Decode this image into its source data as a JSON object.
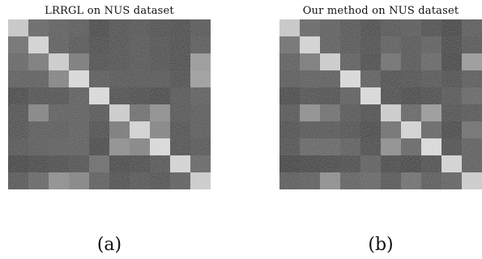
{
  "chart_data": [
    {
      "type": "heatmap",
      "title": "LRRGL on NUS dataset",
      "label": "(a)",
      "rows": 10,
      "cols": 10,
      "values": [
        [
          0.8,
          0.35,
          0.3,
          0.28,
          0.15,
          0.22,
          0.24,
          0.2,
          0.18,
          0.25
        ],
        [
          0.4,
          0.85,
          0.3,
          0.25,
          0.18,
          0.22,
          0.25,
          0.22,
          0.18,
          0.28
        ],
        [
          0.35,
          0.45,
          0.82,
          0.45,
          0.2,
          0.22,
          0.25,
          0.22,
          0.18,
          0.6
        ],
        [
          0.3,
          0.3,
          0.5,
          0.88,
          0.28,
          0.25,
          0.25,
          0.25,
          0.2,
          0.62
        ],
        [
          0.15,
          0.22,
          0.22,
          0.3,
          0.88,
          0.2,
          0.18,
          0.15,
          0.25,
          0.3
        ],
        [
          0.22,
          0.5,
          0.3,
          0.3,
          0.25,
          0.82,
          0.4,
          0.55,
          0.25,
          0.28
        ],
        [
          0.22,
          0.28,
          0.28,
          0.3,
          0.2,
          0.45,
          0.85,
          0.5,
          0.22,
          0.28
        ],
        [
          0.25,
          0.28,
          0.3,
          0.3,
          0.15,
          0.55,
          0.5,
          0.88,
          0.22,
          0.25
        ],
        [
          0.1,
          0.15,
          0.18,
          0.22,
          0.38,
          0.15,
          0.18,
          0.25,
          0.85,
          0.35
        ],
        [
          0.25,
          0.35,
          0.55,
          0.5,
          0.3,
          0.2,
          0.25,
          0.22,
          0.3,
          0.82
        ]
      ]
    },
    {
      "type": "heatmap",
      "title": "Our method on NUS dataset",
      "label": "(b)",
      "rows": 10,
      "cols": 10,
      "values": [
        [
          0.8,
          0.35,
          0.3,
          0.25,
          0.18,
          0.25,
          0.28,
          0.2,
          0.1,
          0.28
        ],
        [
          0.4,
          0.85,
          0.3,
          0.25,
          0.2,
          0.3,
          0.25,
          0.3,
          0.15,
          0.25
        ],
        [
          0.3,
          0.45,
          0.82,
          0.3,
          0.18,
          0.4,
          0.25,
          0.35,
          0.12,
          0.6
        ],
        [
          0.28,
          0.3,
          0.3,
          0.88,
          0.3,
          0.2,
          0.22,
          0.25,
          0.2,
          0.28
        ],
        [
          0.15,
          0.22,
          0.2,
          0.3,
          0.88,
          0.2,
          0.15,
          0.18,
          0.25,
          0.35
        ],
        [
          0.25,
          0.55,
          0.4,
          0.25,
          0.2,
          0.82,
          0.35,
          0.6,
          0.22,
          0.25
        ],
        [
          0.2,
          0.25,
          0.25,
          0.22,
          0.15,
          0.4,
          0.85,
          0.35,
          0.15,
          0.4
        ],
        [
          0.22,
          0.35,
          0.35,
          0.3,
          0.18,
          0.55,
          0.35,
          0.88,
          0.2,
          0.3
        ],
        [
          0.08,
          0.12,
          0.15,
          0.18,
          0.3,
          0.15,
          0.12,
          0.2,
          0.85,
          0.3
        ],
        [
          0.28,
          0.3,
          0.55,
          0.32,
          0.35,
          0.25,
          0.4,
          0.28,
          0.32,
          0.82
        ]
      ]
    }
  ]
}
